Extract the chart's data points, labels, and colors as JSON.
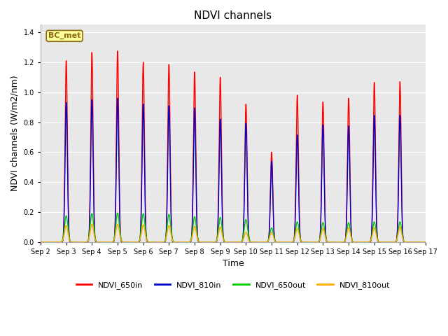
{
  "title": "NDVI channels",
  "xlabel": "Time",
  "ylabel": "NDVI channels (W/m2/nm)",
  "xlim_days": [
    0,
    15
  ],
  "ylim": [
    0,
    1.45
  ],
  "yticks": [
    0.0,
    0.2,
    0.4,
    0.6,
    0.8,
    1.0,
    1.2,
    1.4
  ],
  "bg_color": "#e8e8e8",
  "annotation_text": "BC_met",
  "annotation_bg": "#ffff99",
  "annotation_border": "#8B6914",
  "lines": {
    "NDVI_650in": {
      "color": "#ff0000",
      "lw": 1.0
    },
    "NDVI_810in": {
      "color": "#0000cc",
      "lw": 1.0
    },
    "NDVI_650out": {
      "color": "#00cc00",
      "lw": 1.0
    },
    "NDVI_810out": {
      "color": "#ffaa00",
      "lw": 1.0
    }
  },
  "legend_labels": [
    "NDVI_650in",
    "NDVI_810in",
    "NDVI_650out",
    "NDVI_810out"
  ],
  "legend_colors": [
    "#ff0000",
    "#0000cc",
    "#00cc00",
    "#ffaa00"
  ],
  "peaks": [
    {
      "day": 1.0,
      "r650in": 1.21,
      "r810in": 0.93,
      "r650out": 0.175,
      "r810out": 0.11
    },
    {
      "day": 2.0,
      "r650in": 1.265,
      "r810in": 0.95,
      "r650out": 0.19,
      "r810out": 0.12
    },
    {
      "day": 3.0,
      "r650in": 1.275,
      "r810in": 0.96,
      "r650out": 0.195,
      "r810out": 0.12
    },
    {
      "day": 4.0,
      "r650in": 1.2,
      "r810in": 0.92,
      "r650out": 0.19,
      "r810out": 0.115
    },
    {
      "day": 5.0,
      "r650in": 1.185,
      "r810in": 0.91,
      "r650out": 0.185,
      "r810out": 0.11
    },
    {
      "day": 6.0,
      "r650in": 1.135,
      "r810in": 0.895,
      "r650out": 0.17,
      "r810out": 0.105
    },
    {
      "day": 7.0,
      "r650in": 1.1,
      "r810in": 0.82,
      "r650out": 0.165,
      "r810out": 0.1
    },
    {
      "day": 8.0,
      "r650in": 0.92,
      "r810in": 0.79,
      "r650out": 0.15,
      "r810out": 0.065
    },
    {
      "day": 9.0,
      "r650in": 0.6,
      "r810in": 0.54,
      "r650out": 0.095,
      "r810out": 0.065
    },
    {
      "day": 10.0,
      "r650in": 0.98,
      "r810in": 0.715,
      "r650out": 0.135,
      "r810out": 0.09
    },
    {
      "day": 11.0,
      "r650in": 0.935,
      "r810in": 0.78,
      "r650out": 0.13,
      "r810out": 0.09
    },
    {
      "day": 12.0,
      "r650in": 0.96,
      "r810in": 0.775,
      "r650out": 0.13,
      "r810out": 0.095
    },
    {
      "day": 13.0,
      "r650in": 1.065,
      "r810in": 0.845,
      "r650out": 0.135,
      "r810out": 0.095
    },
    {
      "day": 14.0,
      "r650in": 1.07,
      "r810in": 0.845,
      "r650out": 0.135,
      "r810out": 0.1
    }
  ],
  "xtick_positions": [
    0,
    1,
    2,
    3,
    4,
    5,
    6,
    7,
    8,
    9,
    10,
    11,
    12,
    13,
    14,
    15
  ],
  "xtick_labels": [
    "Sep 2",
    "Sep 3",
    "Sep 4",
    "Sep 5",
    "Sep 6",
    "Sep 7",
    "Sep 8",
    "Sep 9",
    "Sep 10",
    "Sep 11",
    "Sep 12",
    "Sep 13",
    "Sep 14",
    "Sep 15",
    "Sep 16",
    "Sep 17"
  ],
  "sigma_in": 0.045,
  "sigma_out": 0.065
}
